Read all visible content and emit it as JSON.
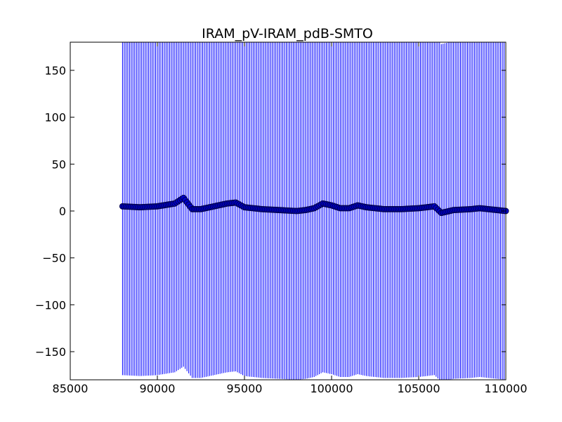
{
  "chart_data": {
    "type": "scatter",
    "title": "IRAM_pV-IRAM_pdB-SMTO",
    "xlabel": "",
    "ylabel": "",
    "xlim": [
      85000,
      110000
    ],
    "ylim": [
      -180,
      180
    ],
    "xticks": [
      85000,
      90000,
      95000,
      100000,
      105000,
      110000
    ],
    "xtick_labels": [
      "85000",
      "90000",
      "95000",
      "100000",
      "105000",
      "110000"
    ],
    "yticks": [
      150,
      100,
      50,
      0,
      -50,
      -100,
      -150
    ],
    "ytick_labels": [
      "150",
      "100",
      "50",
      "0",
      "−50",
      "−100",
      "−150"
    ],
    "grid": false,
    "marker_color": "#0000cc",
    "marker_edge_color": "#00004a",
    "errorbar_color": "#0000ff",
    "errorbars": {
      "x_start": 88000,
      "x_end": 110000,
      "x_step": 100,
      "half_height": 180
    },
    "series": [
      {
        "values_description": "closure phase (degrees)",
        "x": [
          88000,
          89000,
          90000,
          91000,
          91500,
          92000,
          92500,
          93000,
          94000,
          94500,
          95000,
          96000,
          97000,
          98000,
          98500,
          99000,
          99500,
          100000,
          100500,
          101000,
          101500,
          102000,
          103000,
          104000,
          105000,
          105900,
          106300,
          107000,
          108000,
          108500,
          109000,
          110000
        ],
        "y": [
          5,
          4,
          5,
          8,
          14,
          2,
          2,
          4,
          8,
          9,
          4,
          2,
          1,
          0,
          1,
          3,
          8,
          6,
          3,
          3,
          6,
          4,
          2,
          2,
          3,
          5,
          -2,
          1,
          2,
          3,
          2,
          0
        ]
      }
    ]
  }
}
